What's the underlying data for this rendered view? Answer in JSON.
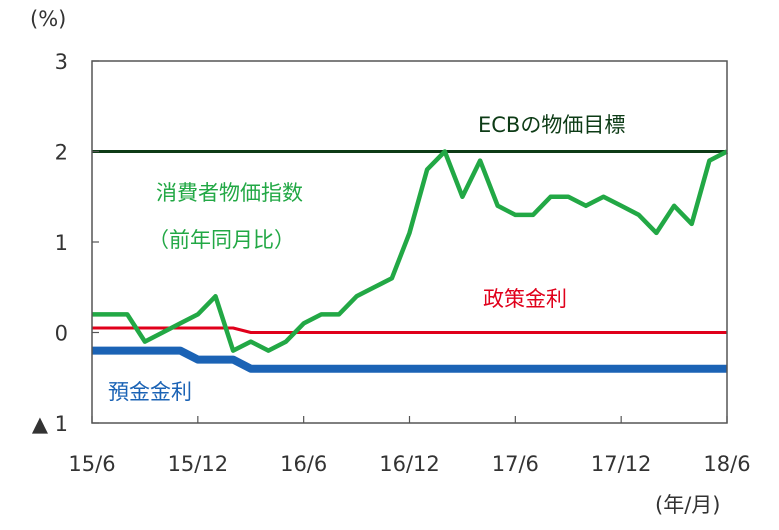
{
  "chart_data": {
    "type": "line",
    "y_unit": "(%)",
    "x_unit": "(年/月)",
    "ylim": [
      -1,
      3
    ],
    "yticks": [
      {
        "value": 3,
        "label": "3"
      },
      {
        "value": 2,
        "label": "2"
      },
      {
        "value": 1,
        "label": "1"
      },
      {
        "value": 0,
        "label": "0"
      },
      {
        "value": -1,
        "label": "▲ 1"
      }
    ],
    "xticks": [
      "15/6",
      "15/12",
      "16/6",
      "16/12",
      "17/6",
      "17/12",
      "18/6"
    ],
    "x_range_months": 36,
    "grid": false,
    "series": [
      {
        "name": "消費者物価指数（前年同月比）",
        "name_line1": "消費者物価指数",
        "name_line2": "（前年同月比）",
        "color": "#22a845",
        "x": [
          0,
          1,
          2,
          3,
          4,
          5,
          6,
          7,
          8,
          9,
          10,
          11,
          12,
          13,
          14,
          15,
          16,
          17,
          18,
          19,
          20,
          21,
          22,
          23,
          24,
          25,
          26,
          27,
          28,
          29,
          30,
          31,
          32,
          33,
          34,
          35,
          36
        ],
        "values": [
          0.2,
          0.2,
          0.2,
          -0.1,
          0.0,
          0.1,
          0.2,
          0.4,
          -0.2,
          -0.1,
          -0.2,
          -0.1,
          0.1,
          0.2,
          0.2,
          0.4,
          0.5,
          0.6,
          1.1,
          1.8,
          2.0,
          1.5,
          1.9,
          1.4,
          1.3,
          1.3,
          1.5,
          1.5,
          1.4,
          1.5,
          1.4,
          1.3,
          1.1,
          1.4,
          1.2,
          1.9,
          2.0
        ]
      },
      {
        "name": "政策金利",
        "color": "#e0001b",
        "x": [
          0,
          8,
          9,
          36
        ],
        "values": [
          0.05,
          0.05,
          0.0,
          0.0
        ]
      },
      {
        "name": "預金金利",
        "color": "#1b63b5",
        "x": [
          0,
          5,
          6,
          8,
          9,
          36
        ],
        "values": [
          -0.2,
          -0.2,
          -0.3,
          -0.3,
          -0.4,
          -0.4
        ]
      },
      {
        "name": "ECBの物価目標",
        "color": "#0d3b16",
        "x": [
          0,
          36
        ],
        "values": [
          2.0,
          2.0
        ]
      }
    ]
  }
}
